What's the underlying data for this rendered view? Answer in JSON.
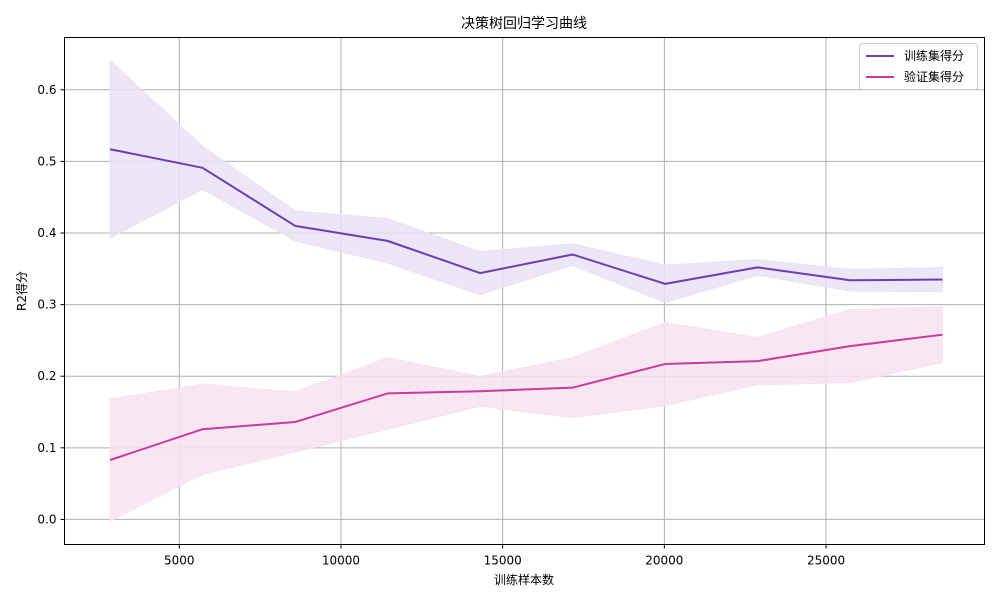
{
  "chart_data": {
    "type": "line",
    "title": "决策树回归学习曲线",
    "xlabel": "训练样本数",
    "ylabel": "R2得分",
    "xlim": [
      1450,
      29900
    ],
    "ylim": [
      -0.035,
      0.673
    ],
    "xticks": [
      5000,
      10000,
      15000,
      20000,
      25000
    ],
    "yticks": [
      0.0,
      0.1,
      0.2,
      0.3,
      0.4,
      0.5,
      0.6
    ],
    "ytick_labels": [
      "0.0",
      "0.1",
      "0.2",
      "0.3",
      "0.4",
      "0.5",
      "0.6"
    ],
    "grid": true,
    "legend_position": "top-right",
    "x": [
      2860,
      5720,
      8580,
      11440,
      14300,
      17160,
      20020,
      22880,
      25740,
      28600
    ],
    "series": [
      {
        "name": "训练集得分",
        "color": "#6a3fb5",
        "band_color": "#e9e2f5",
        "values": [
          0.517,
          0.491,
          0.41,
          0.389,
          0.344,
          0.37,
          0.329,
          0.352,
          0.334,
          0.335
        ],
        "upper": [
          0.641,
          0.521,
          0.431,
          0.42,
          0.374,
          0.385,
          0.355,
          0.363,
          0.349,
          0.352
        ],
        "lower": [
          0.393,
          0.461,
          0.389,
          0.358,
          0.314,
          0.355,
          0.303,
          0.341,
          0.319,
          0.318
        ]
      },
      {
        "name": "验证集得分",
        "color": "#cc3a9f",
        "band_color": "#f7e3f0",
        "values": [
          0.083,
          0.126,
          0.136,
          0.176,
          0.179,
          0.184,
          0.217,
          0.221,
          0.242,
          0.258
        ],
        "upper": [
          0.168,
          0.189,
          0.178,
          0.226,
          0.2,
          0.226,
          0.275,
          0.254,
          0.293,
          0.297
        ],
        "lower": [
          -0.002,
          0.063,
          0.094,
          0.126,
          0.158,
          0.142,
          0.159,
          0.188,
          0.191,
          0.219
        ]
      }
    ]
  }
}
